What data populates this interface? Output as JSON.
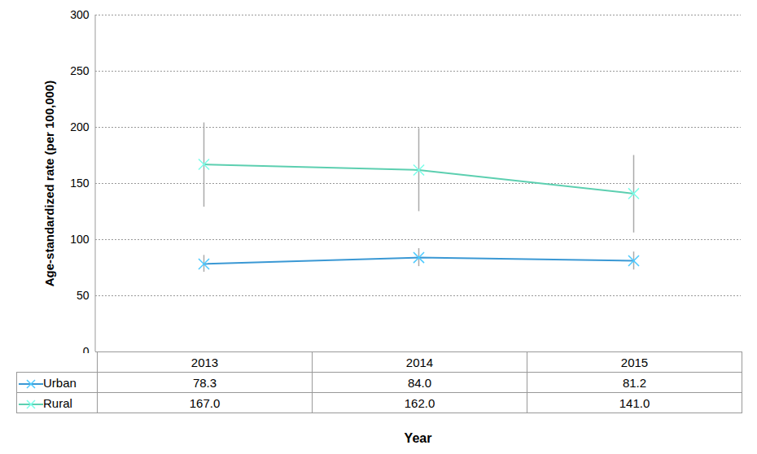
{
  "chart_data": {
    "type": "line",
    "x_label": "Year",
    "y_label": "Age-standardized rate (per 100,000)",
    "categories": [
      "2013",
      "2014",
      "2015"
    ],
    "ylim": [
      0,
      300
    ],
    "yticks": [
      0,
      50,
      100,
      150,
      200,
      250,
      300
    ],
    "grid": true,
    "marker": "x",
    "series": [
      {
        "name": "Urban",
        "color": "#3a98d4",
        "values": [
          78.3,
          84.0,
          81.2
        ],
        "value_labels": [
          "78.3",
          "84.0",
          "81.2"
        ],
        "lower": [
          71,
          76,
          73
        ],
        "upper": [
          86,
          92,
          89
        ]
      },
      {
        "name": "Rural",
        "color": "#5ccfb0",
        "values": [
          167.0,
          162.0,
          141.0
        ],
        "value_labels": [
          "167.0",
          "162.0",
          "141.0"
        ],
        "lower": [
          129,
          125,
          106
        ],
        "upper": [
          204,
          199,
          175
        ]
      }
    ]
  }
}
